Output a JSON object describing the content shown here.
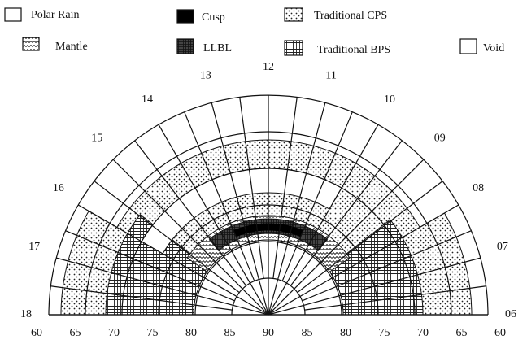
{
  "legend": [
    {
      "label": "Polar Rain"
    },
    {
      "label": "Mantle"
    },
    {
      "label": "Cusp"
    },
    {
      "label": "LLBL"
    },
    {
      "label": "Traditional CPS"
    },
    {
      "label": "Traditional BPS"
    },
    {
      "label": "Void"
    }
  ],
  "hours": [
    "06",
    "07",
    "08",
    "09",
    "10",
    "11",
    "12",
    "13",
    "14",
    "15",
    "16",
    "17",
    "18"
  ],
  "latitude_labels": [
    "60",
    "65",
    "70",
    "75",
    "80",
    "85",
    "90",
    "85",
    "80",
    "75",
    "70",
    "65",
    "60"
  ]
}
